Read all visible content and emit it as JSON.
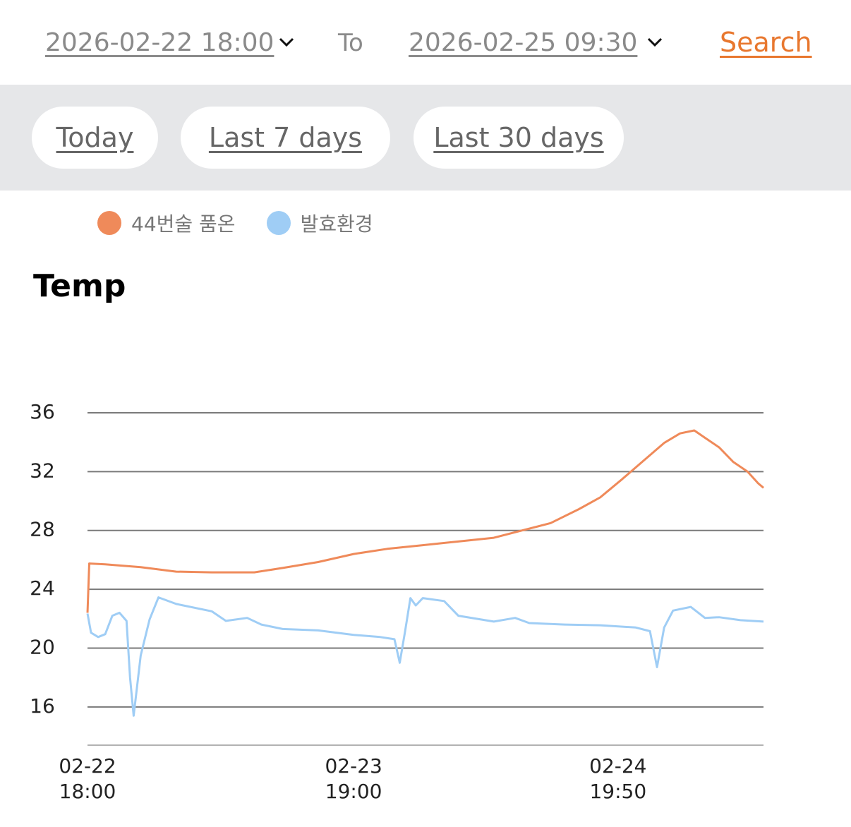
{
  "header": {
    "start": "2026-02-22 18:00",
    "to": "To",
    "end": "2026-02-25 09:30",
    "search": "Search"
  },
  "presets": [
    "Today",
    "Last 7 days",
    "Last 30 days"
  ],
  "chart_data": {
    "type": "line",
    "title": "Temp",
    "legend": "top-left",
    "grid": true,
    "xlim": [
      "02-22 18:00",
      "02-25 09:30"
    ],
    "xticks": [
      "02-22 18:00",
      "02-23 19:00",
      "02-24 19:50"
    ],
    "ylim": [
      13.4,
      36
    ],
    "yticks": [
      16,
      20,
      24,
      28,
      32,
      36
    ],
    "series": [
      {
        "name": "44번술 품온",
        "color": "#ef8a5a",
        "x": [
          "02-22 18:00",
          "02-22 18:10",
          "02-22 19:40",
          "02-22 23:00",
          "02-23 02:20",
          "02-23 05:40",
          "02-23 09:40",
          "02-23 12:20",
          "02-23 15:40",
          "02-23 19:00",
          "02-23 22:10",
          "02-24 01:30",
          "02-24 04:50",
          "02-24 08:10",
          "02-24 10:50",
          "02-24 13:30",
          "02-24 16:10",
          "02-24 18:10",
          "02-24 20:10",
          "02-24 22:10",
          "02-25 00:10",
          "02-25 01:40",
          "02-25 03:00",
          "02-25 04:00",
          "02-25 05:20",
          "02-25 06:40",
          "02-25 08:00",
          "02-25 09:00",
          "02-25 09:30"
        ],
        "values": [
          22.4,
          25.75,
          25.7,
          25.5,
          25.2,
          25.15,
          25.15,
          25.45,
          25.85,
          26.4,
          26.75,
          27.0,
          27.25,
          27.5,
          28.0,
          28.5,
          29.45,
          30.25,
          31.45,
          32.7,
          33.95,
          34.6,
          34.8,
          34.3,
          33.65,
          32.65,
          32.0,
          31.2,
          30.9
        ]
      },
      {
        "name": "발효환경",
        "color": "#9fcdf5",
        "x": [
          "02-22 18:00",
          "02-22 18:20",
          "02-22 19:00",
          "02-22 19:40",
          "02-22 20:20",
          "02-22 21:00",
          "02-22 21:40",
          "02-22 22:00",
          "02-22 22:20",
          "02-22 23:00",
          "02-22 23:50",
          "02-23 00:40",
          "02-23 02:20",
          "02-23 05:40",
          "02-23 07:00",
          "02-23 09:00",
          "02-23 10:20",
          "02-23 12:20",
          "02-23 15:40",
          "02-23 19:00",
          "02-23 21:30",
          "02-23 22:50",
          "02-23 23:20",
          "02-23 23:50",
          "02-24 00:20",
          "02-24 00:50",
          "02-24 01:30",
          "02-24 03:30",
          "02-24 04:50",
          "02-24 08:10",
          "02-24 10:10",
          "02-24 11:30",
          "02-24 14:50",
          "02-24 18:10",
          "02-24 21:30",
          "02-24 22:50",
          "02-24 23:30",
          "02-25 00:10",
          "02-25 01:00",
          "02-25 02:40",
          "02-25 04:00",
          "02-25 05:20",
          "02-25 07:20",
          "02-25 09:30"
        ],
        "values": [
          22.35,
          21.05,
          20.75,
          20.95,
          22.2,
          22.4,
          21.85,
          18.0,
          15.4,
          19.5,
          21.95,
          23.45,
          23.0,
          22.5,
          21.85,
          22.05,
          21.6,
          21.3,
          21.2,
          20.9,
          20.75,
          20.6,
          19.0,
          21.15,
          23.4,
          22.9,
          23.4,
          23.2,
          22.2,
          21.8,
          22.05,
          21.7,
          21.6,
          21.55,
          21.4,
          21.15,
          18.7,
          21.4,
          22.55,
          22.8,
          22.05,
          22.1,
          21.9,
          21.8
        ]
      }
    ]
  }
}
